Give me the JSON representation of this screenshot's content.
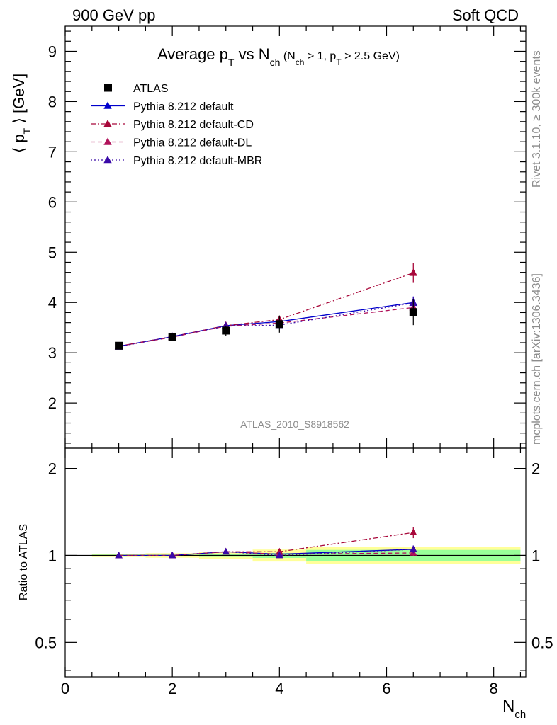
{
  "header": {
    "left": "900 GeV pp",
    "right": "Soft QCD"
  },
  "side_text": {
    "rivet": "Rivet 3.1.10, ≥ 300k events",
    "mcplots": "mcplots.cern.ch [arXiv:1306.3436]"
  },
  "watermark": "ATLAS_2010_S8918562",
  "colors": {
    "data": "#000000",
    "default": "#0000cc",
    "cd": "#a8083a",
    "dl": "#b0125a",
    "mbr": "#3a0aa8",
    "band_inner": "#99ff99",
    "band_outer": "#ffff99"
  },
  "chart_data": {
    "type": "line",
    "title": {
      "main": "Average p",
      "main_sub": "T",
      "vs": " vs N",
      "vs_sub": "ch",
      "cut_open": " (N",
      "cut_sub1": "ch",
      "cut_mid": " > 1, p",
      "cut_sub2": "T",
      "cut_close": " > 2.5 GeV)"
    },
    "xlabel": "N",
    "xlabel_sub": "ch",
    "ylabel_main": {
      "open": "⟨ p",
      "sub": "T",
      "close": " ⟩  [GeV]"
    },
    "ylabel_ratio": "Ratio to ATLAS",
    "xlim": [
      0,
      8.6
    ],
    "ylim_main": [
      1.1,
      9.5
    ],
    "ylim_ratio": [
      0.38,
      2.35
    ],
    "x_ticks": [
      {
        "value": 0,
        "label": "0"
      },
      {
        "value": 2,
        "label": "2"
      },
      {
        "value": 4,
        "label": "4"
      },
      {
        "value": 6,
        "label": "6"
      },
      {
        "value": 8,
        "label": "8"
      }
    ],
    "y_ticks_main": [
      {
        "value": 2,
        "label": "2"
      },
      {
        "value": 3,
        "label": "3"
      },
      {
        "value": 4,
        "label": "4"
      },
      {
        "value": 5,
        "label": "5"
      },
      {
        "value": 6,
        "label": "6"
      },
      {
        "value": 7,
        "label": "7"
      },
      {
        "value": 8,
        "label": "8"
      },
      {
        "value": 9,
        "label": "9"
      }
    ],
    "y_ticks_ratio": [
      {
        "value": 0.5,
        "label": "0.5"
      },
      {
        "value": 1,
        "label": "1"
      },
      {
        "value": 2,
        "label": "2"
      }
    ],
    "x": [
      1,
      2,
      3,
      4,
      6.5
    ],
    "bins": [
      [
        0.5,
        1.5
      ],
      [
        1.5,
        2.5
      ],
      [
        2.5,
        3.5
      ],
      [
        3.5,
        4.5
      ],
      [
        4.5,
        8.5
      ]
    ],
    "atlas": {
      "name": "ATLAS",
      "values": [
        3.14,
        3.32,
        3.44,
        3.57,
        3.81
      ],
      "err_inner": [
        0.02,
        0.02,
        0.04,
        0.07,
        0.17
      ],
      "err_outer": [
        0.04,
        0.06,
        0.1,
        0.17,
        0.26
      ]
    },
    "series": [
      {
        "name": "Pythia 8.212 default",
        "key": "default",
        "dash": "",
        "values": [
          3.13,
          3.32,
          3.54,
          3.62,
          4.0
        ],
        "errors": [
          0.02,
          0.02,
          0.03,
          0.05,
          0.12
        ],
        "ratio": [
          1.0,
          1.0,
          1.03,
          1.01,
          1.05
        ]
      },
      {
        "name": "Pythia 8.212 default-CD",
        "key": "cd",
        "dash": "7,3,2,3",
        "values": [
          3.13,
          3.32,
          3.54,
          3.66,
          4.59
        ],
        "errors": [
          0.02,
          0.02,
          0.03,
          0.06,
          0.2
        ],
        "ratio": [
          1.0,
          1.0,
          1.03,
          1.03,
          1.2
        ]
      },
      {
        "name": "Pythia 8.212 default-DL",
        "key": "dl",
        "dash": "6,4",
        "values": [
          3.13,
          3.31,
          3.53,
          3.59,
          3.9
        ],
        "errors": [
          0.02,
          0.02,
          0.03,
          0.05,
          0.1
        ],
        "ratio": [
          1.0,
          1.0,
          1.03,
          1.01,
          1.02
        ]
      },
      {
        "name": "Pythia 8.212 default-MBR",
        "key": "mbr",
        "dash": "2,3",
        "values": [
          3.12,
          3.32,
          3.53,
          3.55,
          3.99
        ],
        "errors": [
          0.02,
          0.02,
          0.03,
          0.05,
          0.12
        ],
        "ratio": [
          1.0,
          1.0,
          1.03,
          1.0,
          1.05
        ]
      }
    ]
  }
}
